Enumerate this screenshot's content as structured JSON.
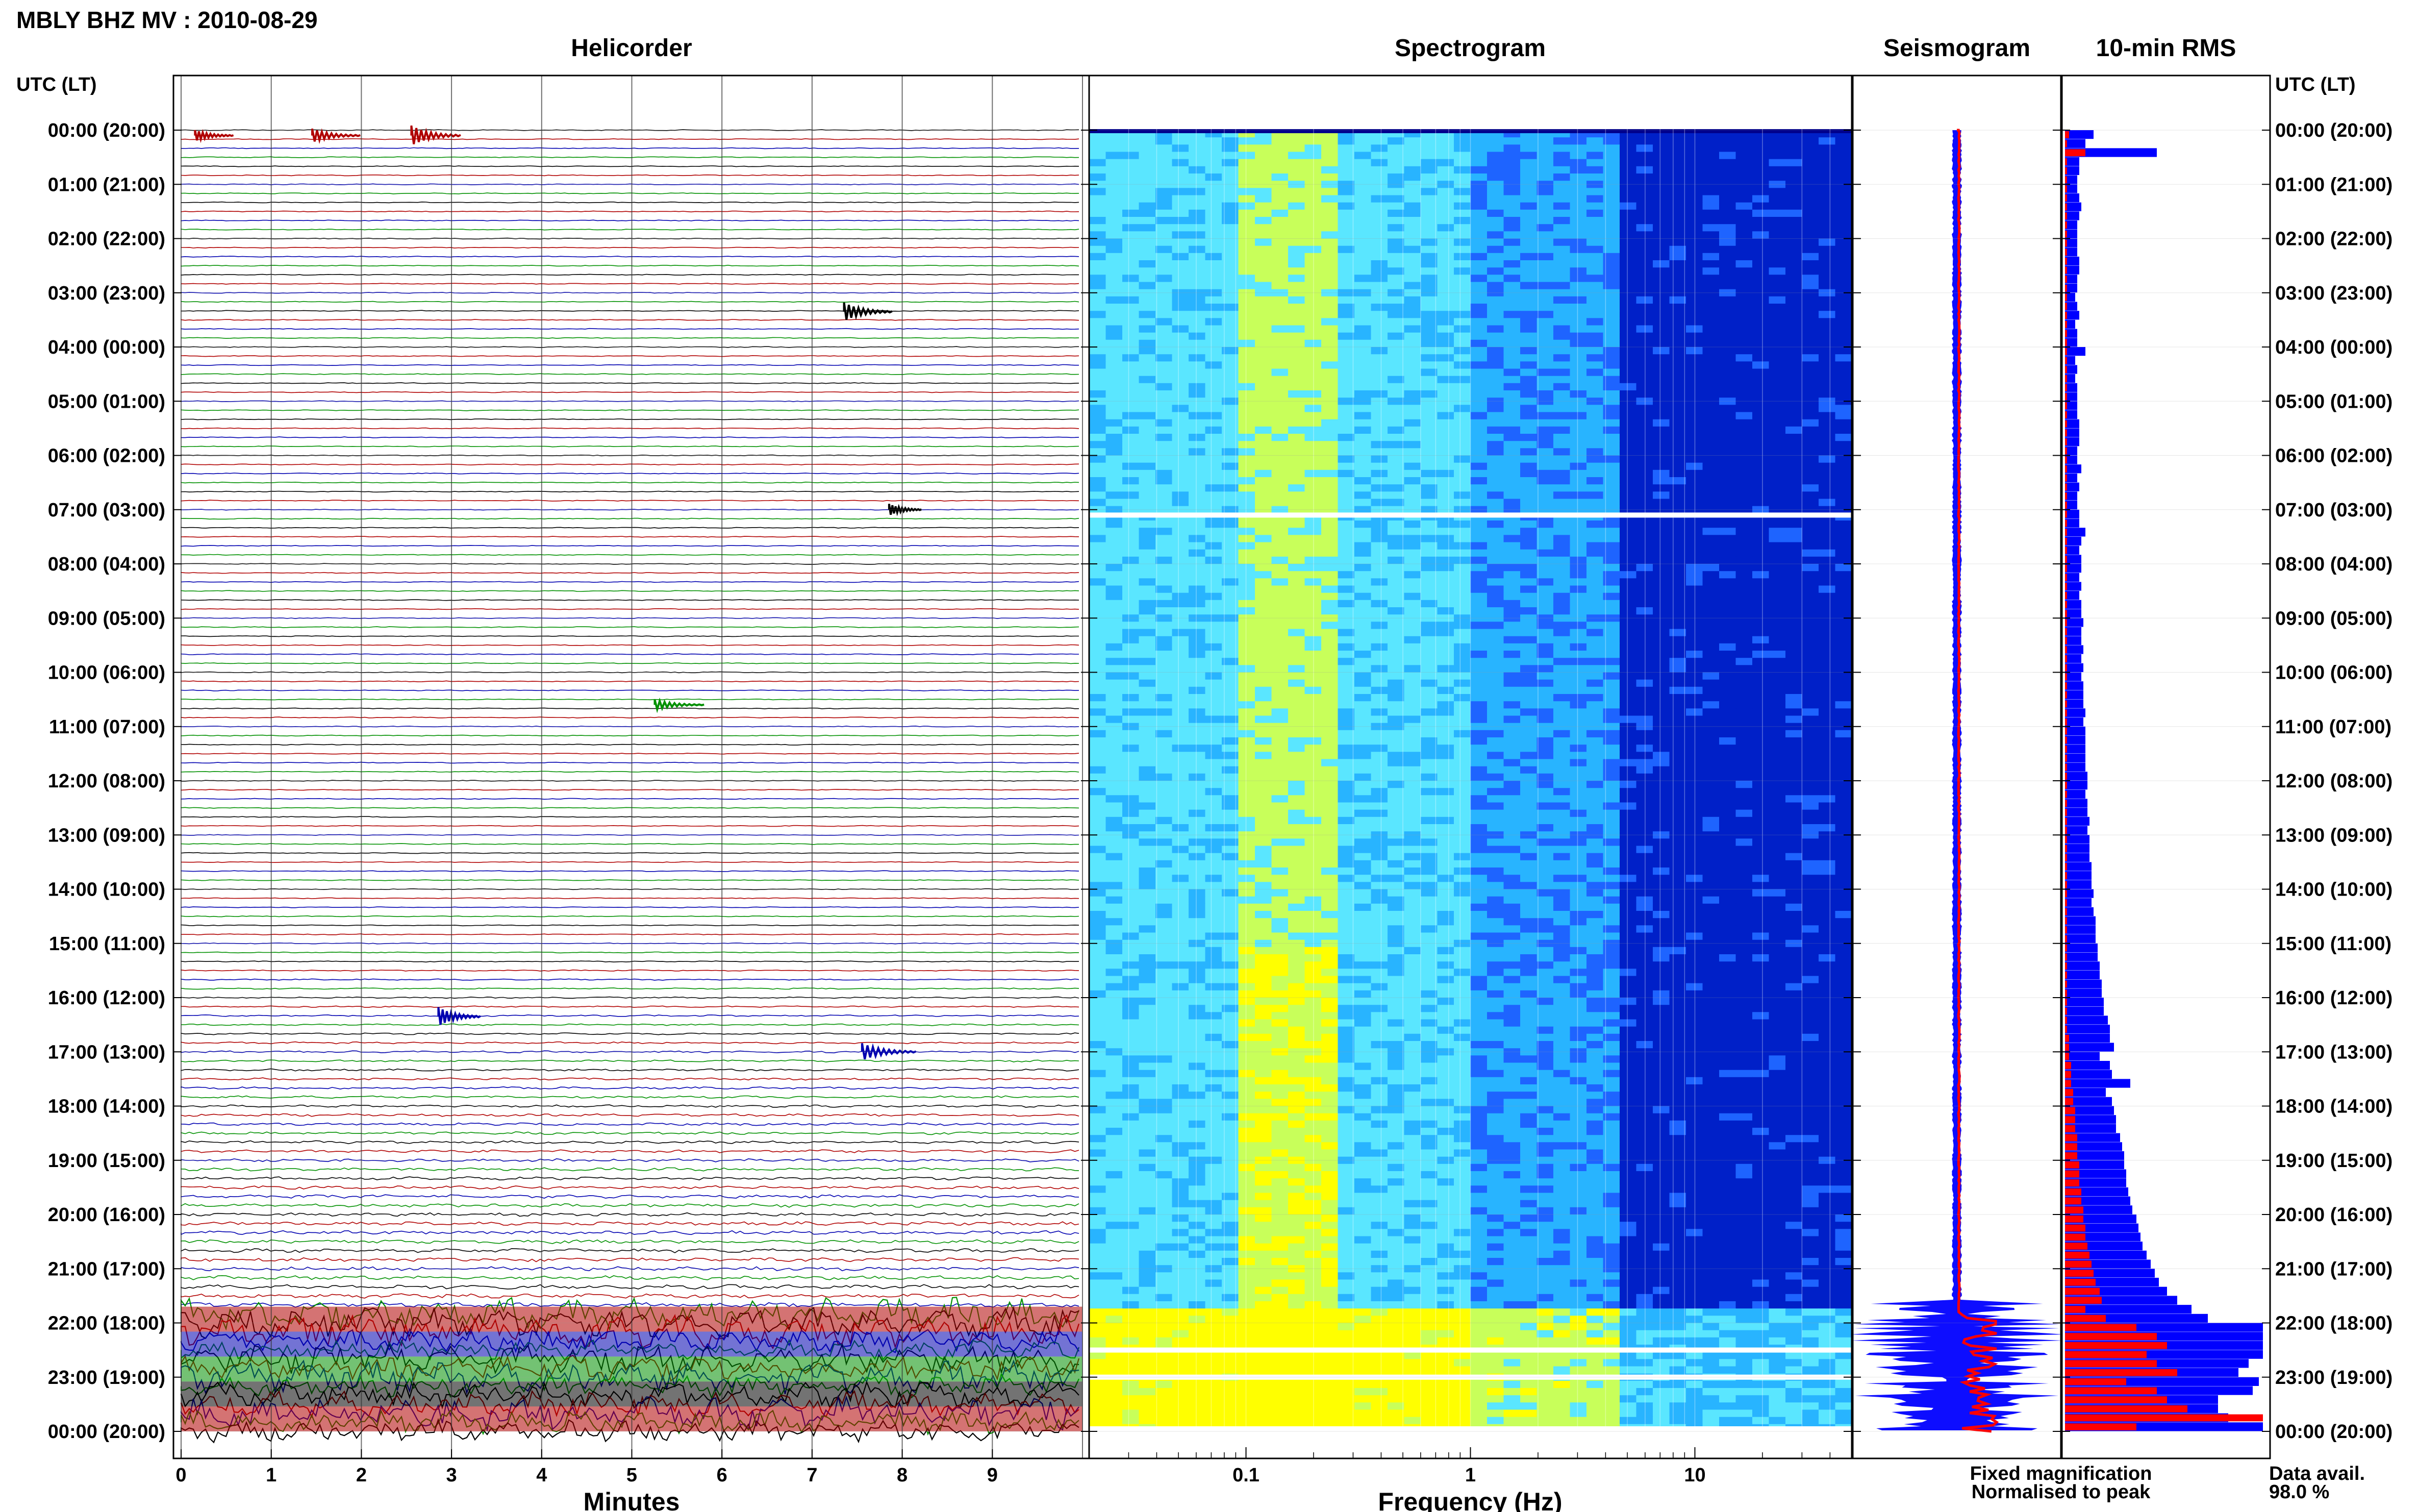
{
  "figure": {
    "title": "MBLY BHZ MV : 2010-08-29",
    "left_axis_header": "UTC (LT)",
    "right_axis_header": "UTC (LT)",
    "footer": {
      "fixed_label": "Fixed magnification",
      "normalised_label": "Normalised to peak",
      "data_avail_label": "Data avail.",
      "data_avail_value": "98.0 %",
      "fixed_color": "#0000ff",
      "normalised_color": "#ff0000"
    }
  },
  "time_labels": [
    "00:00 (20:00)",
    "01:00 (21:00)",
    "02:00 (22:00)",
    "03:00 (23:00)",
    "04:00 (00:00)",
    "05:00 (01:00)",
    "06:00 (02:00)",
    "07:00 (03:00)",
    "08:00 (04:00)",
    "09:00 (05:00)",
    "10:00 (06:00)",
    "11:00 (07:00)",
    "12:00 (08:00)",
    "13:00 (09:00)",
    "14:00 (10:00)",
    "15:00 (11:00)",
    "16:00 (12:00)",
    "17:00 (13:00)",
    "18:00 (14:00)",
    "19:00 (15:00)",
    "20:00 (16:00)",
    "21:00 (17:00)",
    "22:00 (18:00)",
    "23:00 (19:00)",
    "00:00 (20:00)"
  ],
  "chart_data": [
    {
      "type": "line",
      "title": "Helicorder",
      "xlabel": "Minutes",
      "xlim": [
        0,
        10
      ],
      "x_ticks": [
        "0",
        "1",
        "2",
        "3",
        "4",
        "5",
        "6",
        "7",
        "8",
        "9"
      ],
      "ylim_hours_utc": [
        0,
        24
      ],
      "trace_colors": [
        "#000000",
        "#b00000",
        "#0000b0",
        "#009000"
      ],
      "lines_per_hour": 6,
      "events": [
        {
          "hour": 0.1,
          "minute": 0.2,
          "color": "#b00000"
        },
        {
          "hour": 0.1,
          "minute": 1.5,
          "color": "#b00000"
        },
        {
          "hour": 0.1,
          "minute": 2.6,
          "color": "#b00000"
        },
        {
          "hour": 3.35,
          "minute": 7.4,
          "color": "#000000"
        },
        {
          "hour": 7.0,
          "minute": 7.9,
          "color": "#000000"
        },
        {
          "hour": 10.6,
          "minute": 5.3,
          "color": "#009000"
        },
        {
          "hour": 16.35,
          "minute": 2.9,
          "color": "#0000b0"
        },
        {
          "hour": 17.0,
          "minute": 7.6,
          "color": "#0000b0"
        }
      ]
    },
    {
      "type": "heatmap",
      "title": "Spectrogram",
      "xlabel": "Frequency (Hz)",
      "x_scale": "log",
      "xlim": [
        0.02,
        50
      ],
      "x_ticks": [
        "0.1",
        "1",
        "10"
      ],
      "ylim_hours_utc": [
        0,
        24
      ],
      "colormap": [
        "#00008c",
        "#0020c8",
        "#1e64ff",
        "#28b4ff",
        "#5ae6ff",
        "#c8ff5a",
        "#ffff00"
      ],
      "gap_hours": [
        7.1,
        22.5,
        23.0
      ]
    },
    {
      "type": "line",
      "title": "Seismogram",
      "ylim_hours_utc": [
        0,
        24
      ],
      "series": [
        {
          "name": "Fixed magnification",
          "color": "#0000ff"
        },
        {
          "name": "Normalised to peak",
          "color": "#ff0000"
        }
      ]
    },
    {
      "type": "bar",
      "title": "10-min RMS",
      "ylim_hours_utc": [
        0,
        24
      ],
      "series": [
        {
          "name": "Fixed magnification",
          "color": "#0000ff",
          "values": [
            0.14,
            0.1,
            0.45,
            0.07,
            0.07,
            0.06,
            0.06,
            0.07,
            0.08,
            0.07,
            0.06,
            0.06,
            0.06,
            0.06,
            0.07,
            0.07,
            0.06,
            0.06,
            0.05,
            0.06,
            0.07,
            0.05,
            0.06,
            0.06,
            0.1,
            0.05,
            0.06,
            0.05,
            0.06,
            0.06,
            0.06,
            0.06,
            0.07,
            0.07,
            0.07,
            0.06,
            0.06,
            0.08,
            0.06,
            0.07,
            0.06,
            0.06,
            0.07,
            0.07,
            0.1,
            0.08,
            0.07,
            0.08,
            0.08,
            0.07,
            0.08,
            0.07,
            0.08,
            0.08,
            0.09,
            0.08,
            0.08,
            0.09,
            0.08,
            0.09,
            0.08,
            0.09,
            0.09,
            0.09,
            0.1,
            0.09,
            0.1,
            0.1,
            0.1,
            0.1,
            0.1,
            0.11,
            0.11,
            0.1,
            0.11,
            0.11,
            0.12,
            0.11,
            0.12,
            0.12,
            0.12,
            0.13,
            0.13,
            0.13,
            0.14,
            0.13,
            0.14,
            0.15,
            0.15,
            0.15,
            0.16,
            0.16,
            0.17,
            0.17,
            0.18,
            0.18,
            0.19,
            0.19,
            0.21,
            0.22,
            0.22,
            0.24,
            0.17,
            0.22,
            0.23,
            0.32,
            0.2,
            0.23,
            0.24,
            0.25,
            0.25,
            0.27,
            0.28,
            0.29,
            0.29,
            0.3,
            0.3,
            0.31,
            0.32,
            0.33,
            0.35,
            0.36,
            0.37,
            0.38,
            0.4,
            0.42,
            0.44,
            0.46,
            0.5,
            0.55,
            0.62,
            0.7,
            0.97,
            0.97,
            0.97,
            0.97,
            0.9,
            0.85,
            0.95,
            0.92,
            0.75,
            0.75,
            0.8,
            0.97
          ]
        },
        {
          "name": "Normalised to peak",
          "color": "#ff0000",
          "values": [
            0.02,
            0.01,
            0.1,
            0.01,
            0.01,
            0.01,
            0.01,
            0.01,
            0.01,
            0.01,
            0.01,
            0.01,
            0.01,
            0.01,
            0.01,
            0.01,
            0.01,
            0.01,
            0.01,
            0.01,
            0.01,
            0.01,
            0.01,
            0.01,
            0.01,
            0.01,
            0.01,
            0.01,
            0.01,
            0.01,
            0.01,
            0.01,
            0.01,
            0.01,
            0.01,
            0.01,
            0.01,
            0.01,
            0.01,
            0.01,
            0.01,
            0.01,
            0.01,
            0.01,
            0.01,
            0.01,
            0.01,
            0.01,
            0.01,
            0.01,
            0.01,
            0.01,
            0.01,
            0.01,
            0.01,
            0.01,
            0.01,
            0.01,
            0.01,
            0.01,
            0.01,
            0.01,
            0.01,
            0.01,
            0.01,
            0.01,
            0.01,
            0.01,
            0.01,
            0.01,
            0.01,
            0.01,
            0.01,
            0.01,
            0.01,
            0.01,
            0.01,
            0.01,
            0.01,
            0.01,
            0.01,
            0.01,
            0.01,
            0.01,
            0.01,
            0.01,
            0.01,
            0.01,
            0.01,
            0.01,
            0.01,
            0.01,
            0.01,
            0.01,
            0.01,
            0.01,
            0.01,
            0.01,
            0.01,
            0.01,
            0.02,
            0.02,
            0.02,
            0.03,
            0.03,
            0.03,
            0.04,
            0.04,
            0.05,
            0.05,
            0.05,
            0.06,
            0.06,
            0.06,
            0.07,
            0.07,
            0.07,
            0.08,
            0.08,
            0.09,
            0.09,
            0.1,
            0.1,
            0.11,
            0.12,
            0.13,
            0.14,
            0.15,
            0.17,
            0.18,
            0.1,
            0.2,
            0.35,
            0.45,
            0.5,
            0.4,
            0.45,
            0.55,
            0.3,
            0.45,
            0.5,
            0.6,
            0.97,
            0.35
          ]
        }
      ]
    }
  ]
}
